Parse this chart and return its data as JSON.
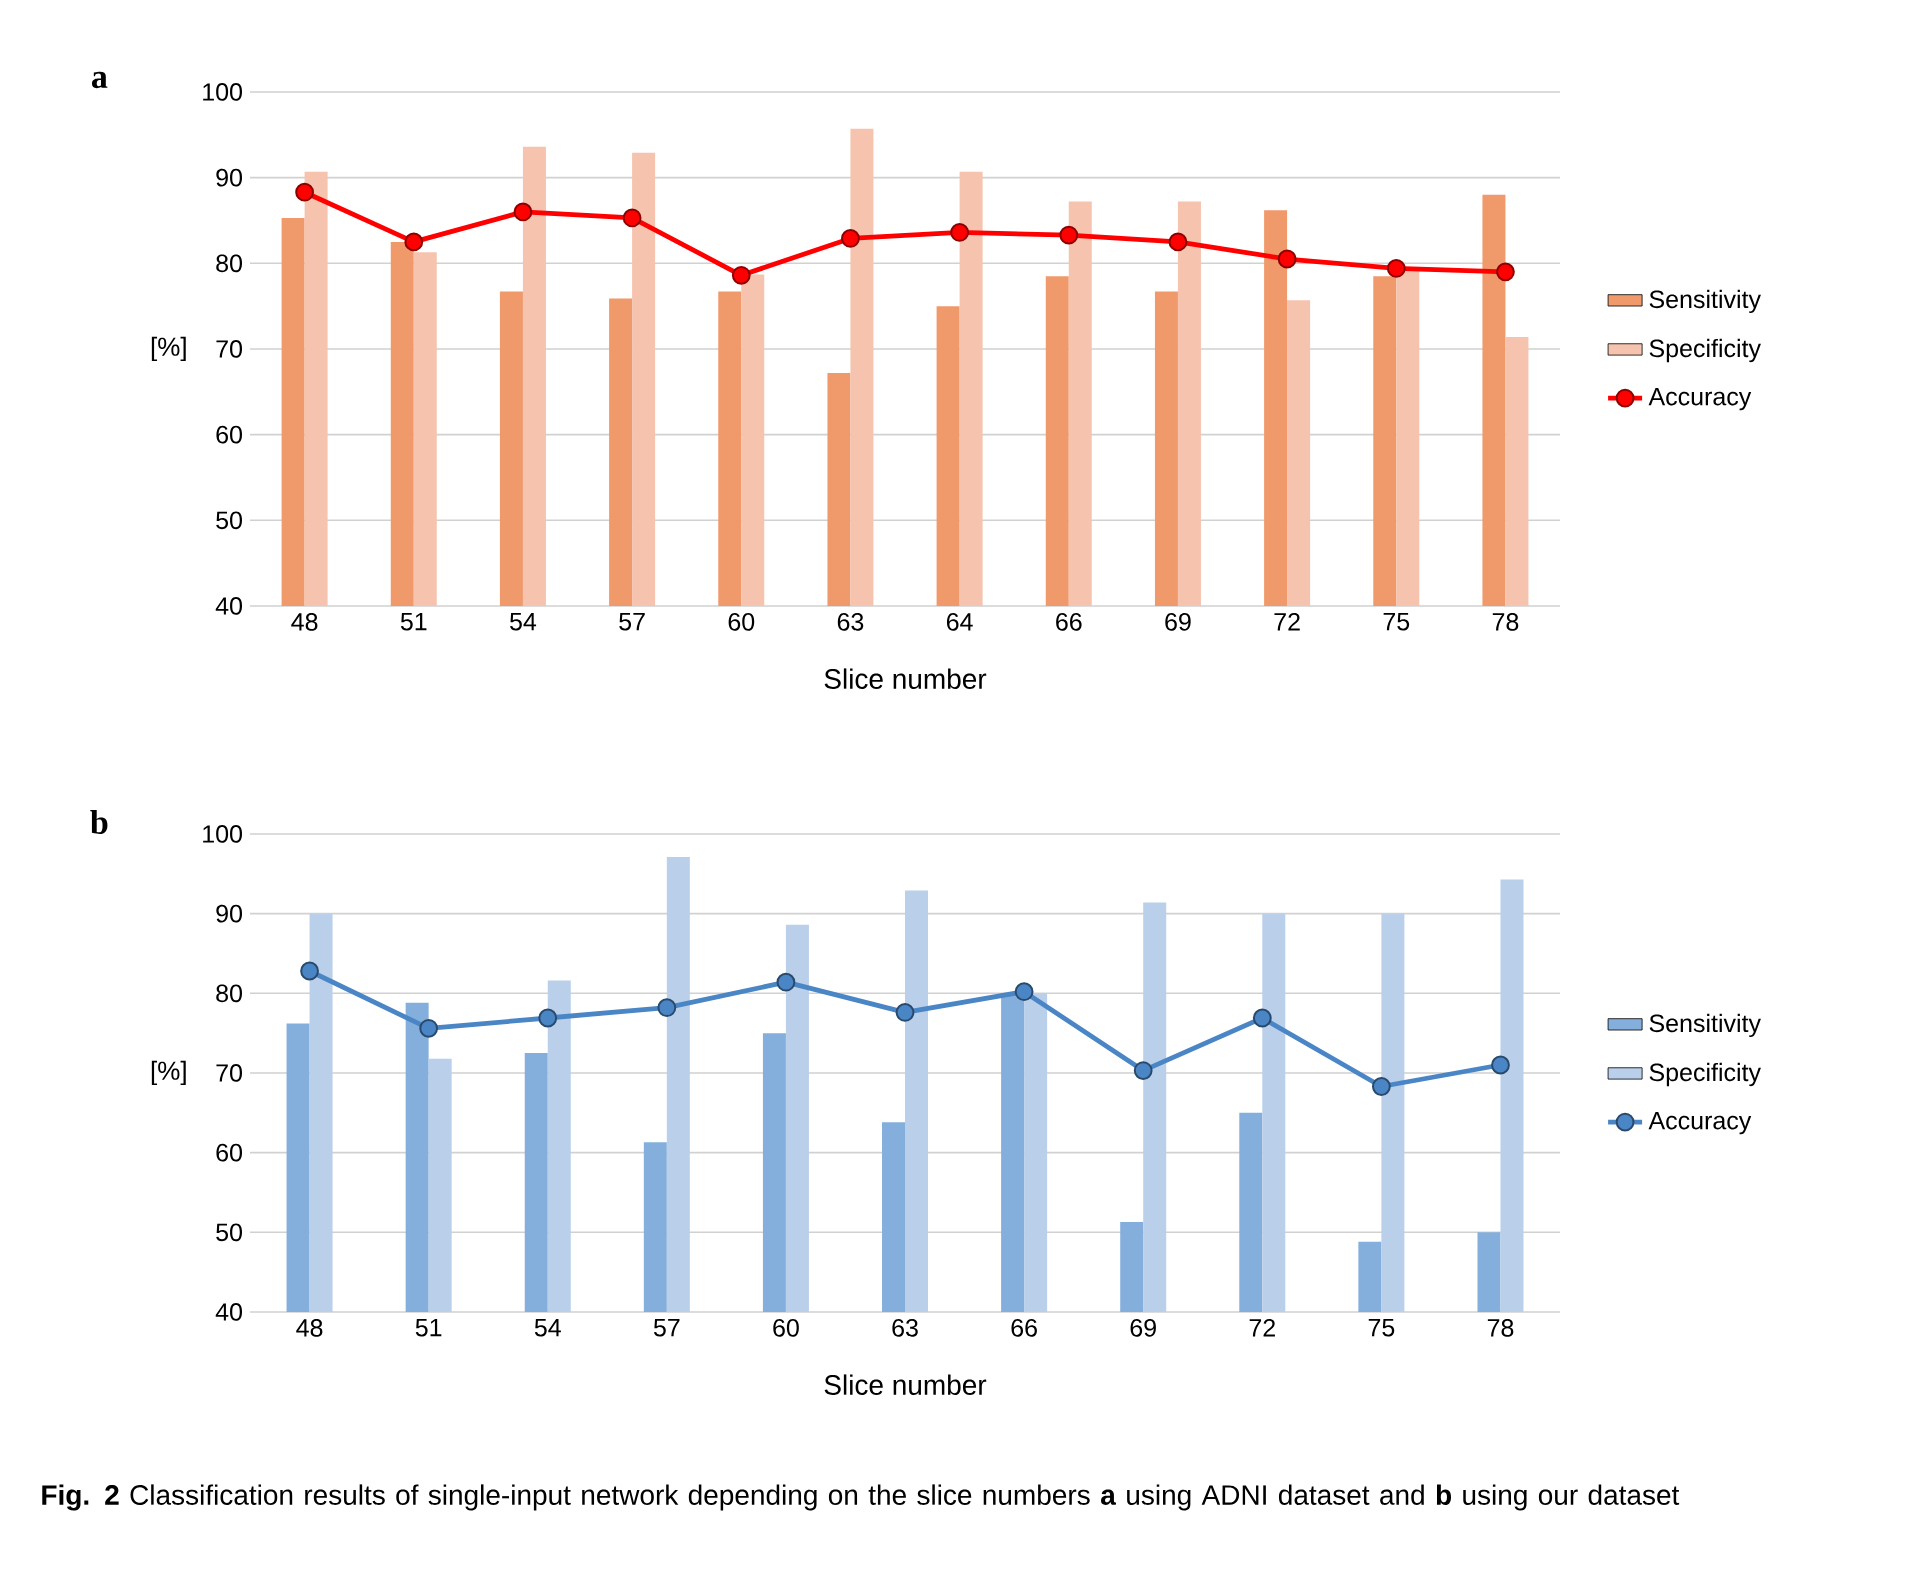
{
  "chart_data": [
    {
      "type": "bar",
      "title": "a",
      "xlabel": "Slice number",
      "ylabel": "[%]",
      "categories": [
        "48",
        "51",
        "54",
        "57",
        "60",
        "63",
        "64",
        "66",
        "69",
        "72",
        "75",
        "78"
      ],
      "ylim": [
        40,
        100
      ],
      "yticks": [
        40,
        50,
        60,
        70,
        80,
        90,
        100
      ],
      "grid": "y",
      "legend": "right",
      "series": [
        {
          "name": "Sensitivity",
          "color": "#f0996b",
          "values": [
            85.3,
            82.5,
            76.7,
            75.9,
            76.7,
            67.2,
            75.0,
            78.5,
            76.7,
            86.2,
            78.5,
            88.0
          ]
        },
        {
          "name": "Specificity",
          "color": "#f5c3ae",
          "values": [
            90.7,
            81.3,
            93.6,
            92.9,
            78.7,
            95.7,
            90.7,
            87.2,
            87.2,
            75.7,
            79.5,
            71.4
          ]
        },
        {
          "name": "Accuracy",
          "type": "line",
          "color": "#ff0000",
          "marker": "circle",
          "line_style": "solid",
          "values": [
            88.3,
            82.5,
            86.0,
            85.3,
            78.6,
            82.9,
            83.6,
            83.3,
            82.5,
            80.5,
            79.4,
            79.0
          ]
        }
      ]
    },
    {
      "type": "bar",
      "title": "b",
      "xlabel": "Slice number",
      "ylabel": "[%]",
      "categories": [
        "48",
        "51",
        "54",
        "57",
        "60",
        "63",
        "66",
        "69",
        "72",
        "75",
        "78"
      ],
      "ylim": [
        40,
        100
      ],
      "yticks": [
        40,
        50,
        60,
        70,
        80,
        90,
        100
      ],
      "grid": "y",
      "legend": "right",
      "series": [
        {
          "name": "Sensitivity",
          "color": "#84afdc",
          "values": [
            76.2,
            78.8,
            72.5,
            61.3,
            75.0,
            63.8,
            80.0,
            51.3,
            65.0,
            48.8,
            50.0
          ]
        },
        {
          "name": "Specificity",
          "color": "#b9cfea",
          "values": [
            90.0,
            71.8,
            81.6,
            97.1,
            88.6,
            92.9,
            80.0,
            91.4,
            90.0,
            90.0,
            94.3
          ]
        },
        {
          "name": "Accuracy",
          "type": "line",
          "color": "#4a86c5",
          "marker": "circle",
          "line_style": "solid",
          "values": [
            82.8,
            75.6,
            76.9,
            78.2,
            81.4,
            77.6,
            80.2,
            70.3,
            76.9,
            68.3,
            71.0
          ]
        }
      ],
      "annotations": [
        "**Fig. 2**  Classification results of single-input network depending on the slice numbers **a** using ADNI dataset and **b** using our dataset"
      ]
    }
  ]
}
